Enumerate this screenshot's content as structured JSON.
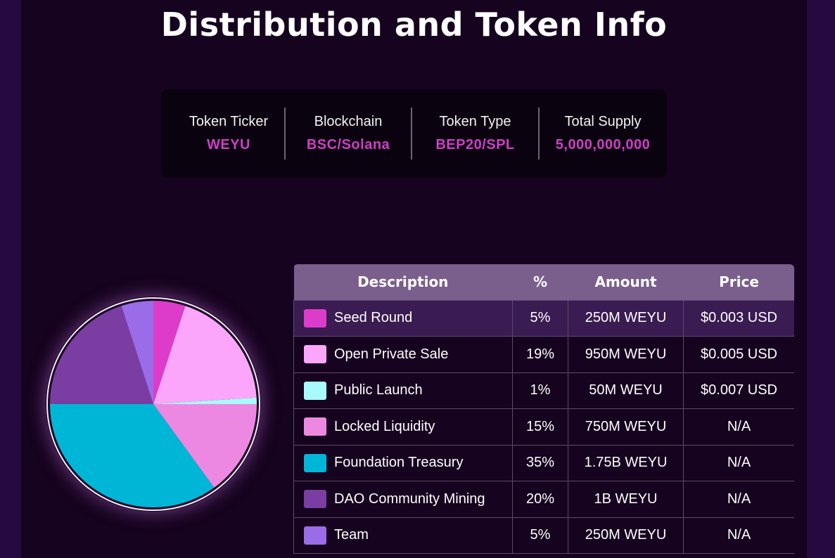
{
  "page": {
    "title": "Distribution and Token Info"
  },
  "token_info": [
    {
      "label": "Token Ticker",
      "value": "WEYU"
    },
    {
      "label": "Blockchain",
      "value": "BSC/Solana"
    },
    {
      "label": "Token Type",
      "value": "BEP20/SPL"
    },
    {
      "label": "Total Supply",
      "value": "5,000,000,000"
    }
  ],
  "table": {
    "headers": [
      "Description",
      "%",
      "Amount",
      "Price"
    ],
    "rows": [
      {
        "color": "#dd3cca",
        "description": "Seed Round",
        "percent": "5%",
        "amount": "250M WEYU",
        "price": "$0.003 USD"
      },
      {
        "color": "#fba6fb",
        "description": "Open Private Sale",
        "percent": "19%",
        "amount": "950M WEYU",
        "price": "$0.005 USD"
      },
      {
        "color": "#a8fbfd",
        "description": "Public Launch",
        "percent": "1%",
        "amount": "50M WEYU",
        "price": "$0.007 USD"
      },
      {
        "color": "#ed88e2",
        "description": "Locked Liquidity",
        "percent": "15%",
        "amount": "750M WEYU",
        "price": "N/A"
      },
      {
        "color": "#00b6d6",
        "description": "Foundation Treasury",
        "percent": "35%",
        "amount": "1.75B WEYU",
        "price": "N/A"
      },
      {
        "color": "#7a3ea3",
        "description": "DAO Community Mining",
        "percent": "20%",
        "amount": "1B WEYU",
        "price": "N/A"
      },
      {
        "color": "#9a6ce8",
        "description": "Team",
        "percent": "5%",
        "amount": "250M WEYU",
        "price": "N/A"
      }
    ]
  },
  "chart_data": {
    "type": "pie",
    "categories": [
      "Seed Round",
      "Open Private Sale",
      "Public Launch",
      "Locked Liquidity",
      "Foundation Treasury",
      "DAO Community Mining",
      "Team"
    ],
    "values": [
      5,
      19,
      1,
      15,
      35,
      20,
      5
    ],
    "colors": [
      "#dd3cca",
      "#fba6fb",
      "#a8fbfd",
      "#ed88e2",
      "#00b6d6",
      "#7a3ea3",
      "#9a6ce8"
    ],
    "start_angle": "12 o'clock",
    "direction": "clockwise"
  }
}
